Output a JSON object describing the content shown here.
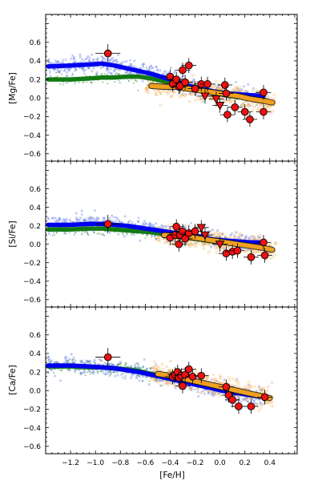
{
  "chart_data": [
    {
      "type": "scatter",
      "panel": "Mg",
      "ylabel": "[Mg/Fe]",
      "xlabel": "",
      "xlim": [
        -1.4,
        0.62
      ],
      "ylim": [
        -0.68,
        0.9
      ],
      "yticks": [
        -0.6,
        -0.4,
        -0.2,
        0.0,
        0.2,
        0.4,
        0.6
      ],
      "ytick_labels": [
        "−0.6",
        "−0.4",
        "−0.2",
        "0.0",
        "0.2",
        "0.4",
        "0.6"
      ],
      "series": [
        {
          "name": "",
          "kind": "band",
          "color": "#0000ee",
          "x": [
            -1.38,
            -1.2,
            -1.05,
            -0.95,
            -0.85,
            -0.75,
            -0.65,
            -0.55,
            -0.45,
            -0.35,
            -0.25,
            -0.15,
            -0.05,
            0.05,
            0.15,
            0.25,
            0.35
          ],
          "y": [
            0.34,
            0.35,
            0.36,
            0.37,
            0.35,
            0.32,
            0.29,
            0.26,
            0.22,
            0.18,
            0.13,
            0.1,
            0.07,
            0.05,
            0.04,
            0.03,
            0.02
          ]
        },
        {
          "name": "",
          "kind": "band",
          "color": "#137a13",
          "x": [
            -1.38,
            -1.2,
            -1.05,
            -0.95,
            -0.85,
            -0.75,
            -0.65,
            -0.55,
            -0.45,
            -0.35,
            -0.25,
            -0.15,
            -0.05,
            0.05,
            0.15,
            0.25,
            0.35
          ],
          "y": [
            0.2,
            0.2,
            0.21,
            0.22,
            0.22,
            0.23,
            0.23,
            0.21,
            0.18,
            0.15,
            0.12,
            0.08,
            0.06,
            0.03,
            0.01,
            0.0,
            -0.01
          ]
        },
        {
          "name": "",
          "kind": "band",
          "color": "#f0a020",
          "x": [
            -0.55,
            -0.45,
            -0.35,
            -0.25,
            -0.15,
            -0.05,
            0.05,
            0.15,
            0.25,
            0.35,
            0.42
          ],
          "y": [
            0.13,
            0.12,
            0.12,
            0.1,
            0.08,
            0.06,
            0.04,
            0.02,
            -0.01,
            -0.03,
            -0.05
          ]
        },
        {
          "name": "",
          "kind": "points",
          "marker": "circle",
          "color": "#ee1111",
          "x": [
            -0.9,
            -0.4,
            -0.38,
            -0.35,
            -0.33,
            -0.32,
            -0.3,
            -0.28,
            -0.25,
            -0.2,
            -0.15,
            -0.1,
            0.04,
            0.05,
            0.06,
            0.12,
            0.2,
            0.24,
            0.35,
            0.35
          ],
          "y": [
            0.48,
            0.23,
            0.15,
            0.2,
            0.12,
            0.13,
            0.3,
            0.17,
            0.35,
            0.1,
            0.15,
            0.15,
            0.14,
            0.05,
            -0.18,
            -0.1,
            -0.15,
            -0.23,
            0.06,
            -0.15
          ]
        },
        {
          "name": "",
          "kind": "points",
          "marker": "triangle-down",
          "color": "#ee1111",
          "x": [
            -0.12,
            -0.03,
            0.0
          ],
          "y": [
            0.02,
            -0.01,
            -0.08
          ]
        }
      ]
    },
    {
      "type": "scatter",
      "panel": "Si",
      "ylabel": "[Si/Fe]",
      "xlabel": "",
      "xlim": [
        -1.4,
        0.62
      ],
      "ylim": [
        -0.68,
        0.9
      ],
      "yticks": [
        -0.6,
        -0.4,
        -0.2,
        0.0,
        0.2,
        0.4,
        0.6
      ],
      "ytick_labels": [
        "−0.6",
        "−0.4",
        "−0.2",
        "0.0",
        "0.2",
        "0.4",
        "0.6"
      ],
      "series": [
        {
          "name": "",
          "kind": "band",
          "color": "#0000ee",
          "x": [
            -1.38,
            -1.2,
            -1.05,
            -0.95,
            -0.85,
            -0.75,
            -0.65,
            -0.55,
            -0.45,
            -0.35,
            -0.25,
            -0.15,
            -0.05,
            0.05,
            0.15,
            0.25,
            0.35
          ],
          "y": [
            0.21,
            0.21,
            0.22,
            0.22,
            0.21,
            0.2,
            0.18,
            0.16,
            0.14,
            0.12,
            0.1,
            0.08,
            0.05,
            0.04,
            0.03,
            0.02,
            0.02
          ]
        },
        {
          "name": "",
          "kind": "band",
          "color": "#137a13",
          "x": [
            -1.38,
            -1.2,
            -1.05,
            -0.95,
            -0.85,
            -0.75,
            -0.65,
            -0.55,
            -0.45,
            -0.35,
            -0.25,
            -0.15,
            -0.05,
            0.05
          ],
          "y": [
            0.16,
            0.16,
            0.17,
            0.17,
            0.16,
            0.15,
            0.14,
            0.13,
            0.11,
            0.09,
            0.07,
            0.05,
            0.03,
            0.02
          ]
        },
        {
          "name": "",
          "kind": "band",
          "color": "#f0a020",
          "x": [
            -0.45,
            -0.35,
            -0.25,
            -0.15,
            -0.05,
            0.05,
            0.15,
            0.25,
            0.35,
            0.42
          ],
          "y": [
            0.1,
            0.09,
            0.08,
            0.06,
            0.04,
            0.02,
            0.0,
            -0.02,
            -0.04,
            -0.06
          ]
        },
        {
          "name": "",
          "kind": "points",
          "marker": "circle",
          "color": "#ee1111",
          "x": [
            -0.9,
            -0.4,
            -0.36,
            -0.35,
            -0.33,
            -0.32,
            -0.3,
            -0.28,
            -0.25,
            -0.2,
            0.05,
            0.1,
            0.14,
            0.25,
            0.35,
            0.36
          ],
          "y": [
            0.22,
            0.07,
            0.1,
            0.19,
            0.0,
            0.1,
            0.14,
            0.06,
            0.12,
            0.14,
            -0.1,
            -0.08,
            -0.07,
            -0.14,
            0.02,
            -0.12
          ]
        },
        {
          "name": "",
          "kind": "points",
          "marker": "triangle-down",
          "color": "#ee1111",
          "x": [
            -0.15,
            -0.12,
            0.0
          ],
          "y": [
            0.18,
            0.1,
            0.0
          ]
        }
      ]
    },
    {
      "type": "scatter",
      "panel": "Ca",
      "ylabel": "[Ca/Fe]",
      "xlabel": "[Fe/H]",
      "xlim": [
        -1.4,
        0.62
      ],
      "ylim": [
        -0.68,
        0.9
      ],
      "yticks": [
        -0.6,
        -0.4,
        -0.2,
        0.0,
        0.2,
        0.4,
        0.6
      ],
      "ytick_labels": [
        "−0.6",
        "−0.4",
        "−0.2",
        "0.0",
        "0.2",
        "0.4",
        "0.6"
      ],
      "xticks": [
        -1.2,
        -1.0,
        -0.8,
        -0.6,
        -0.4,
        -0.2,
        0.0,
        0.2,
        0.4
      ],
      "xtick_labels": [
        "−1.2",
        "−1.0",
        "−0.8",
        "−0.6",
        "−0.4",
        "−0.2",
        "0.0",
        "0.2",
        "0.4"
      ],
      "series": [
        {
          "name": "",
          "kind": "band",
          "color": "#0000ee",
          "x": [
            -1.38,
            -1.2,
            -1.05,
            -0.95,
            -0.85,
            -0.75,
            -0.65,
            -0.55,
            -0.45,
            -0.35,
            -0.25,
            -0.15,
            -0.05,
            0.05,
            0.15,
            0.25,
            0.35
          ],
          "y": [
            0.27,
            0.27,
            0.26,
            0.25,
            0.24,
            0.22,
            0.2,
            0.17,
            0.14,
            0.11,
            0.08,
            0.05,
            0.02,
            -0.01,
            -0.03,
            -0.05,
            -0.07
          ]
        },
        {
          "name": "",
          "kind": "band",
          "color": "#137a13",
          "x": [
            -1.38,
            -1.2,
            -1.05,
            -0.95,
            -0.85,
            -0.75,
            -0.65,
            -0.55,
            -0.45
          ],
          "y": [
            0.26,
            0.26,
            0.25,
            0.25,
            0.24,
            0.23,
            0.21,
            0.18,
            0.15
          ]
        },
        {
          "name": "",
          "kind": "band",
          "color": "#f0a020",
          "x": [
            -0.5,
            -0.4,
            -0.3,
            -0.2,
            -0.1,
            0.0,
            0.1,
            0.2,
            0.3,
            0.4
          ],
          "y": [
            0.18,
            0.16,
            0.13,
            0.1,
            0.07,
            0.04,
            0.01,
            -0.02,
            -0.05,
            -0.08
          ]
        },
        {
          "name": "",
          "kind": "points",
          "marker": "circle",
          "color": "#ee1111",
          "x": [
            -0.9,
            -0.38,
            -0.36,
            -0.34,
            -0.33,
            -0.31,
            -0.3,
            -0.28,
            -0.25,
            -0.22,
            -0.15,
            0.05,
            0.07,
            0.1,
            0.15,
            0.25,
            0.36
          ],
          "y": [
            0.36,
            0.15,
            0.17,
            0.2,
            0.14,
            0.16,
            0.05,
            0.17,
            0.23,
            0.15,
            0.16,
            0.04,
            -0.05,
            -0.1,
            -0.17,
            -0.17,
            -0.07
          ]
        }
      ]
    }
  ]
}
